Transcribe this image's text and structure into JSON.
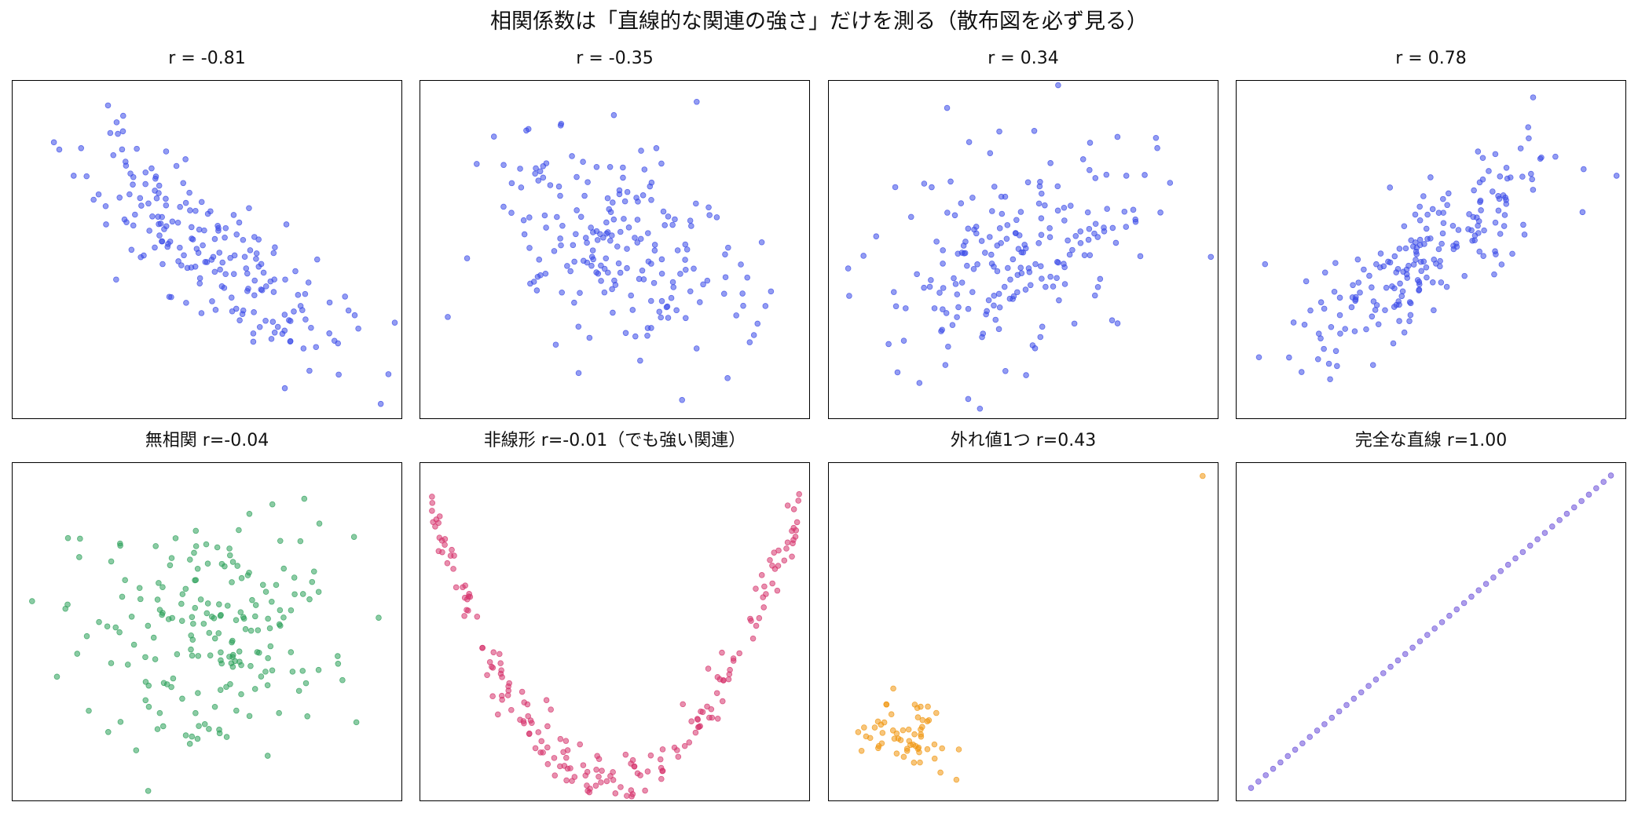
{
  "suptitle": "相関係数は「直線的な関連の強さ」だけを測る（散布図を必ず見る）",
  "chart_data": [
    {
      "type": "scatter",
      "title": "r = -0.81",
      "color": "#3b4be8",
      "generator": "linear",
      "target_r": -0.81,
      "n": 200,
      "seed": 11,
      "xlim": [
        -3.0,
        3.0
      ],
      "ylim": [
        -3.0,
        3.0
      ],
      "grid": false,
      "ticks": false
    },
    {
      "type": "scatter",
      "title": "r = -0.35",
      "color": "#3b4be8",
      "generator": "linear",
      "target_r": -0.35,
      "n": 200,
      "seed": 23,
      "xlim": [
        -3.0,
        3.0
      ],
      "ylim": [
        -3.0,
        3.0
      ],
      "grid": false,
      "ticks": false
    },
    {
      "type": "scatter",
      "title": "r = 0.34",
      "color": "#3b4be8",
      "generator": "linear",
      "target_r": 0.34,
      "n": 200,
      "seed": 37,
      "xlim": [
        -3.0,
        3.0
      ],
      "ylim": [
        -3.0,
        3.0
      ],
      "grid": false,
      "ticks": false
    },
    {
      "type": "scatter",
      "title": "r = 0.78",
      "color": "#3b4be8",
      "generator": "linear",
      "target_r": 0.78,
      "n": 200,
      "seed": 41,
      "xlim": [
        -3.0,
        3.0
      ],
      "ylim": [
        -3.0,
        3.0
      ],
      "grid": false,
      "ticks": false
    },
    {
      "type": "scatter",
      "title": "無相関 r=-0.04",
      "color": "#2ca05a",
      "generator": "linear",
      "target_r": -0.04,
      "n": 200,
      "seed": 53,
      "xlim": [
        -3.0,
        3.0
      ],
      "ylim": [
        -3.0,
        3.0
      ],
      "grid": false,
      "ticks": false
    },
    {
      "type": "scatter",
      "title": "非線形 r=-0.01（でも強い関連）",
      "color": "#d6336c",
      "generator": "quadratic",
      "n": 200,
      "seed": 67,
      "xlim": [
        -3.0,
        3.0
      ],
      "ylim": [
        -0.6,
        9.4
      ],
      "grid": false,
      "ticks": false
    },
    {
      "type": "scatter",
      "title": "外れ値1つ r=0.43",
      "color": "#f0960e",
      "generator": "cluster_outlier",
      "n": 60,
      "seed": 71,
      "outlier": [
        10.0,
        10.0
      ],
      "xlim": [
        -2.5,
        10.5
      ],
      "ylim": [
        -2.5,
        10.5
      ],
      "grid": false,
      "ticks": false
    },
    {
      "type": "scatter",
      "title": "完全な直線 r=1.00",
      "color": "#6a4fd8",
      "generator": "line",
      "n": 50,
      "xlim": [
        -0.04,
        1.04
      ],
      "ylim": [
        -0.04,
        1.04
      ],
      "grid": false,
      "ticks": false
    }
  ]
}
